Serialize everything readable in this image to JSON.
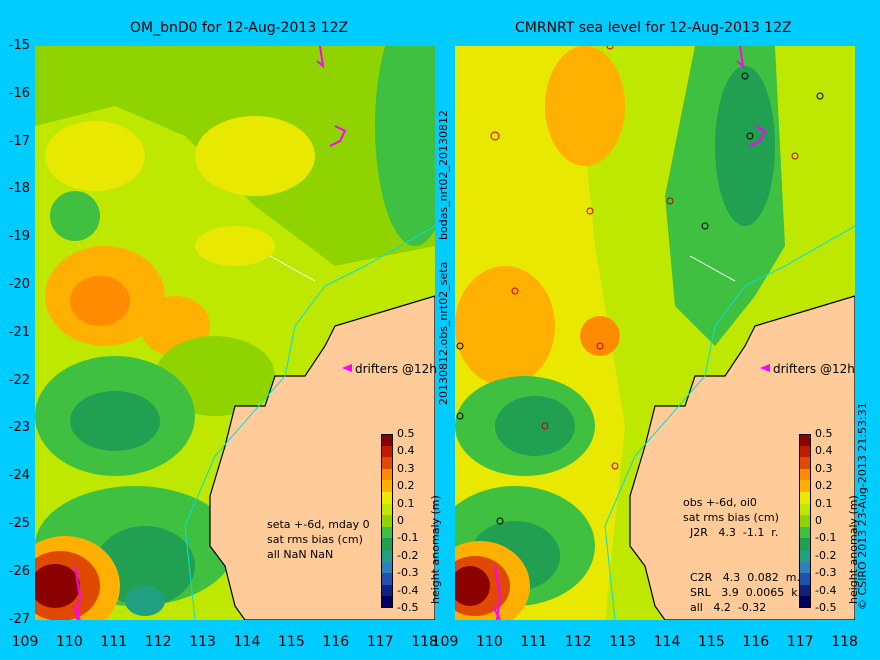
{
  "left": {
    "title": "OM_bnD0 for 12-Aug-2013 12Z",
    "drifters": "drifters @12h",
    "stats": [
      "seta +-6d, mday 0",
      "sat rms bias (cm)",
      "all NaN NaN"
    ]
  },
  "right": {
    "title": "CMRNRT sea level  for 12-Aug-2013 12Z",
    "drifters": "drifters @12h",
    "stats": [
      "obs +-6d, oi0",
      "sat rms bias (cm)",
      "  J2R   4.3  -1.1  r.",
      "  C2R   4.3  0.082  m.",
      "  SRL   3.9  0.0065  k.",
      "  all   4.2  -0.32"
    ]
  },
  "side_labels": {
    "middle_top": "bodas_nrt02_20130812",
    "middle_bottom": "20130812.obs_nrt02_seta",
    "right_edge": "© CSIRO 2013   23-Aug-2013 21:53:31"
  },
  "colorbar": {
    "unit_label": "height anomaly (m)",
    "ticks": [
      "0.5",
      "0.4",
      "0.3",
      "0.2",
      "0.1",
      "0",
      "-0.1",
      "-0.2",
      "-0.3",
      "-0.4",
      "-0.5"
    ],
    "colors": [
      "#8b0000",
      "#c01a00",
      "#e04a00",
      "#ff8c00",
      "#ffb000",
      "#e8e800",
      "#bfe800",
      "#8fd400",
      "#40c040",
      "#20a050",
      "#20a080",
      "#3080c0",
      "#2050b0",
      "#102080",
      "#000060"
    ]
  },
  "axes": {
    "x_ticks": [
      "109",
      "110",
      "111",
      "112",
      "113",
      "114",
      "115",
      "116",
      "117",
      "118"
    ],
    "y_ticks": [
      "-15",
      "-16",
      "-17",
      "-18",
      "-19",
      "-20",
      "-21",
      "-22",
      "-23",
      "-24",
      "-25",
      "-26",
      "-27"
    ]
  },
  "colors": {
    "background": "#00ccff",
    "land": "#ffcc99",
    "coast": "#000000"
  }
}
